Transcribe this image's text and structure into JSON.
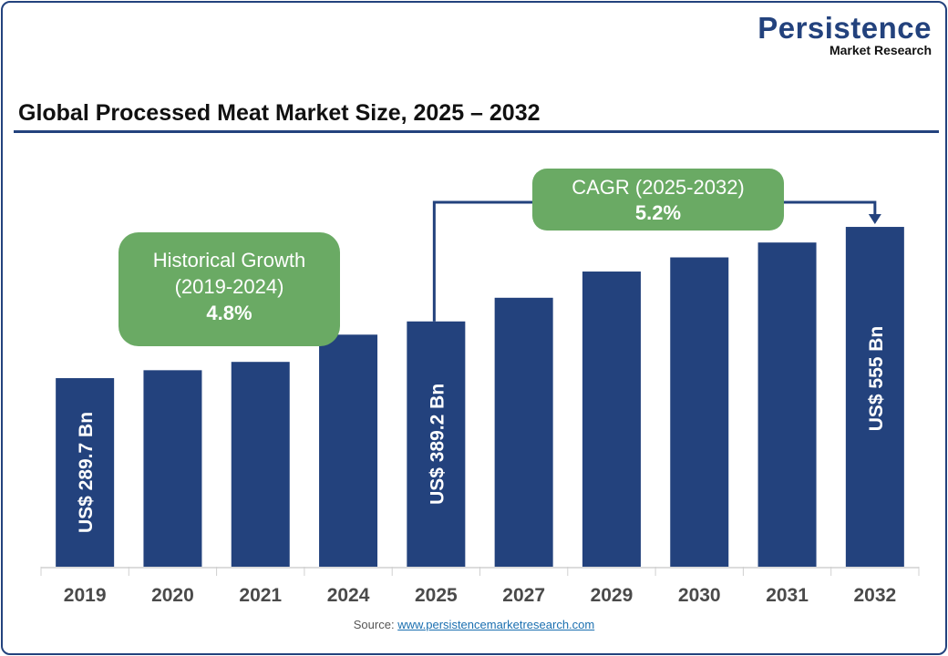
{
  "logo": {
    "line1": "Persistence",
    "line2": "Market Research"
  },
  "title": "Global Processed Meat Market Size, 2025 – 2032",
  "source": {
    "label": "Source:",
    "link": "www.persistencemarketresearch.com"
  },
  "colors": {
    "bar": "#23427d",
    "callout": "#6aaa64",
    "frame": "#23427d"
  },
  "callouts": {
    "historical": {
      "line1": "Historical Growth",
      "line2": "(2019-2024)",
      "value": "4.8%"
    },
    "cagr": {
      "line1": "CAGR (2025-2032)",
      "value": "5.2%"
    }
  },
  "chart_data": {
    "type": "bar",
    "title": "Global Processed Meat Market Size, 2025 – 2032",
    "categories": [
      "2019",
      "2020",
      "2021",
      "2024",
      "2025",
      "2027",
      "2029",
      "2030",
      "2031",
      "2032"
    ],
    "values": [
      289.7,
      303.6,
      318.2,
      366.0,
      389.2,
      430.7,
      476.7,
      501.5,
      527.6,
      555
    ],
    "data_labels": {
      "2019": "US$ 289.7 Bn",
      "2025": "US$ 389.2 Bn",
      "2032": "US$ 555 Bn"
    },
    "unit": "US$ Bn",
    "grid": false,
    "legend": "none"
  }
}
